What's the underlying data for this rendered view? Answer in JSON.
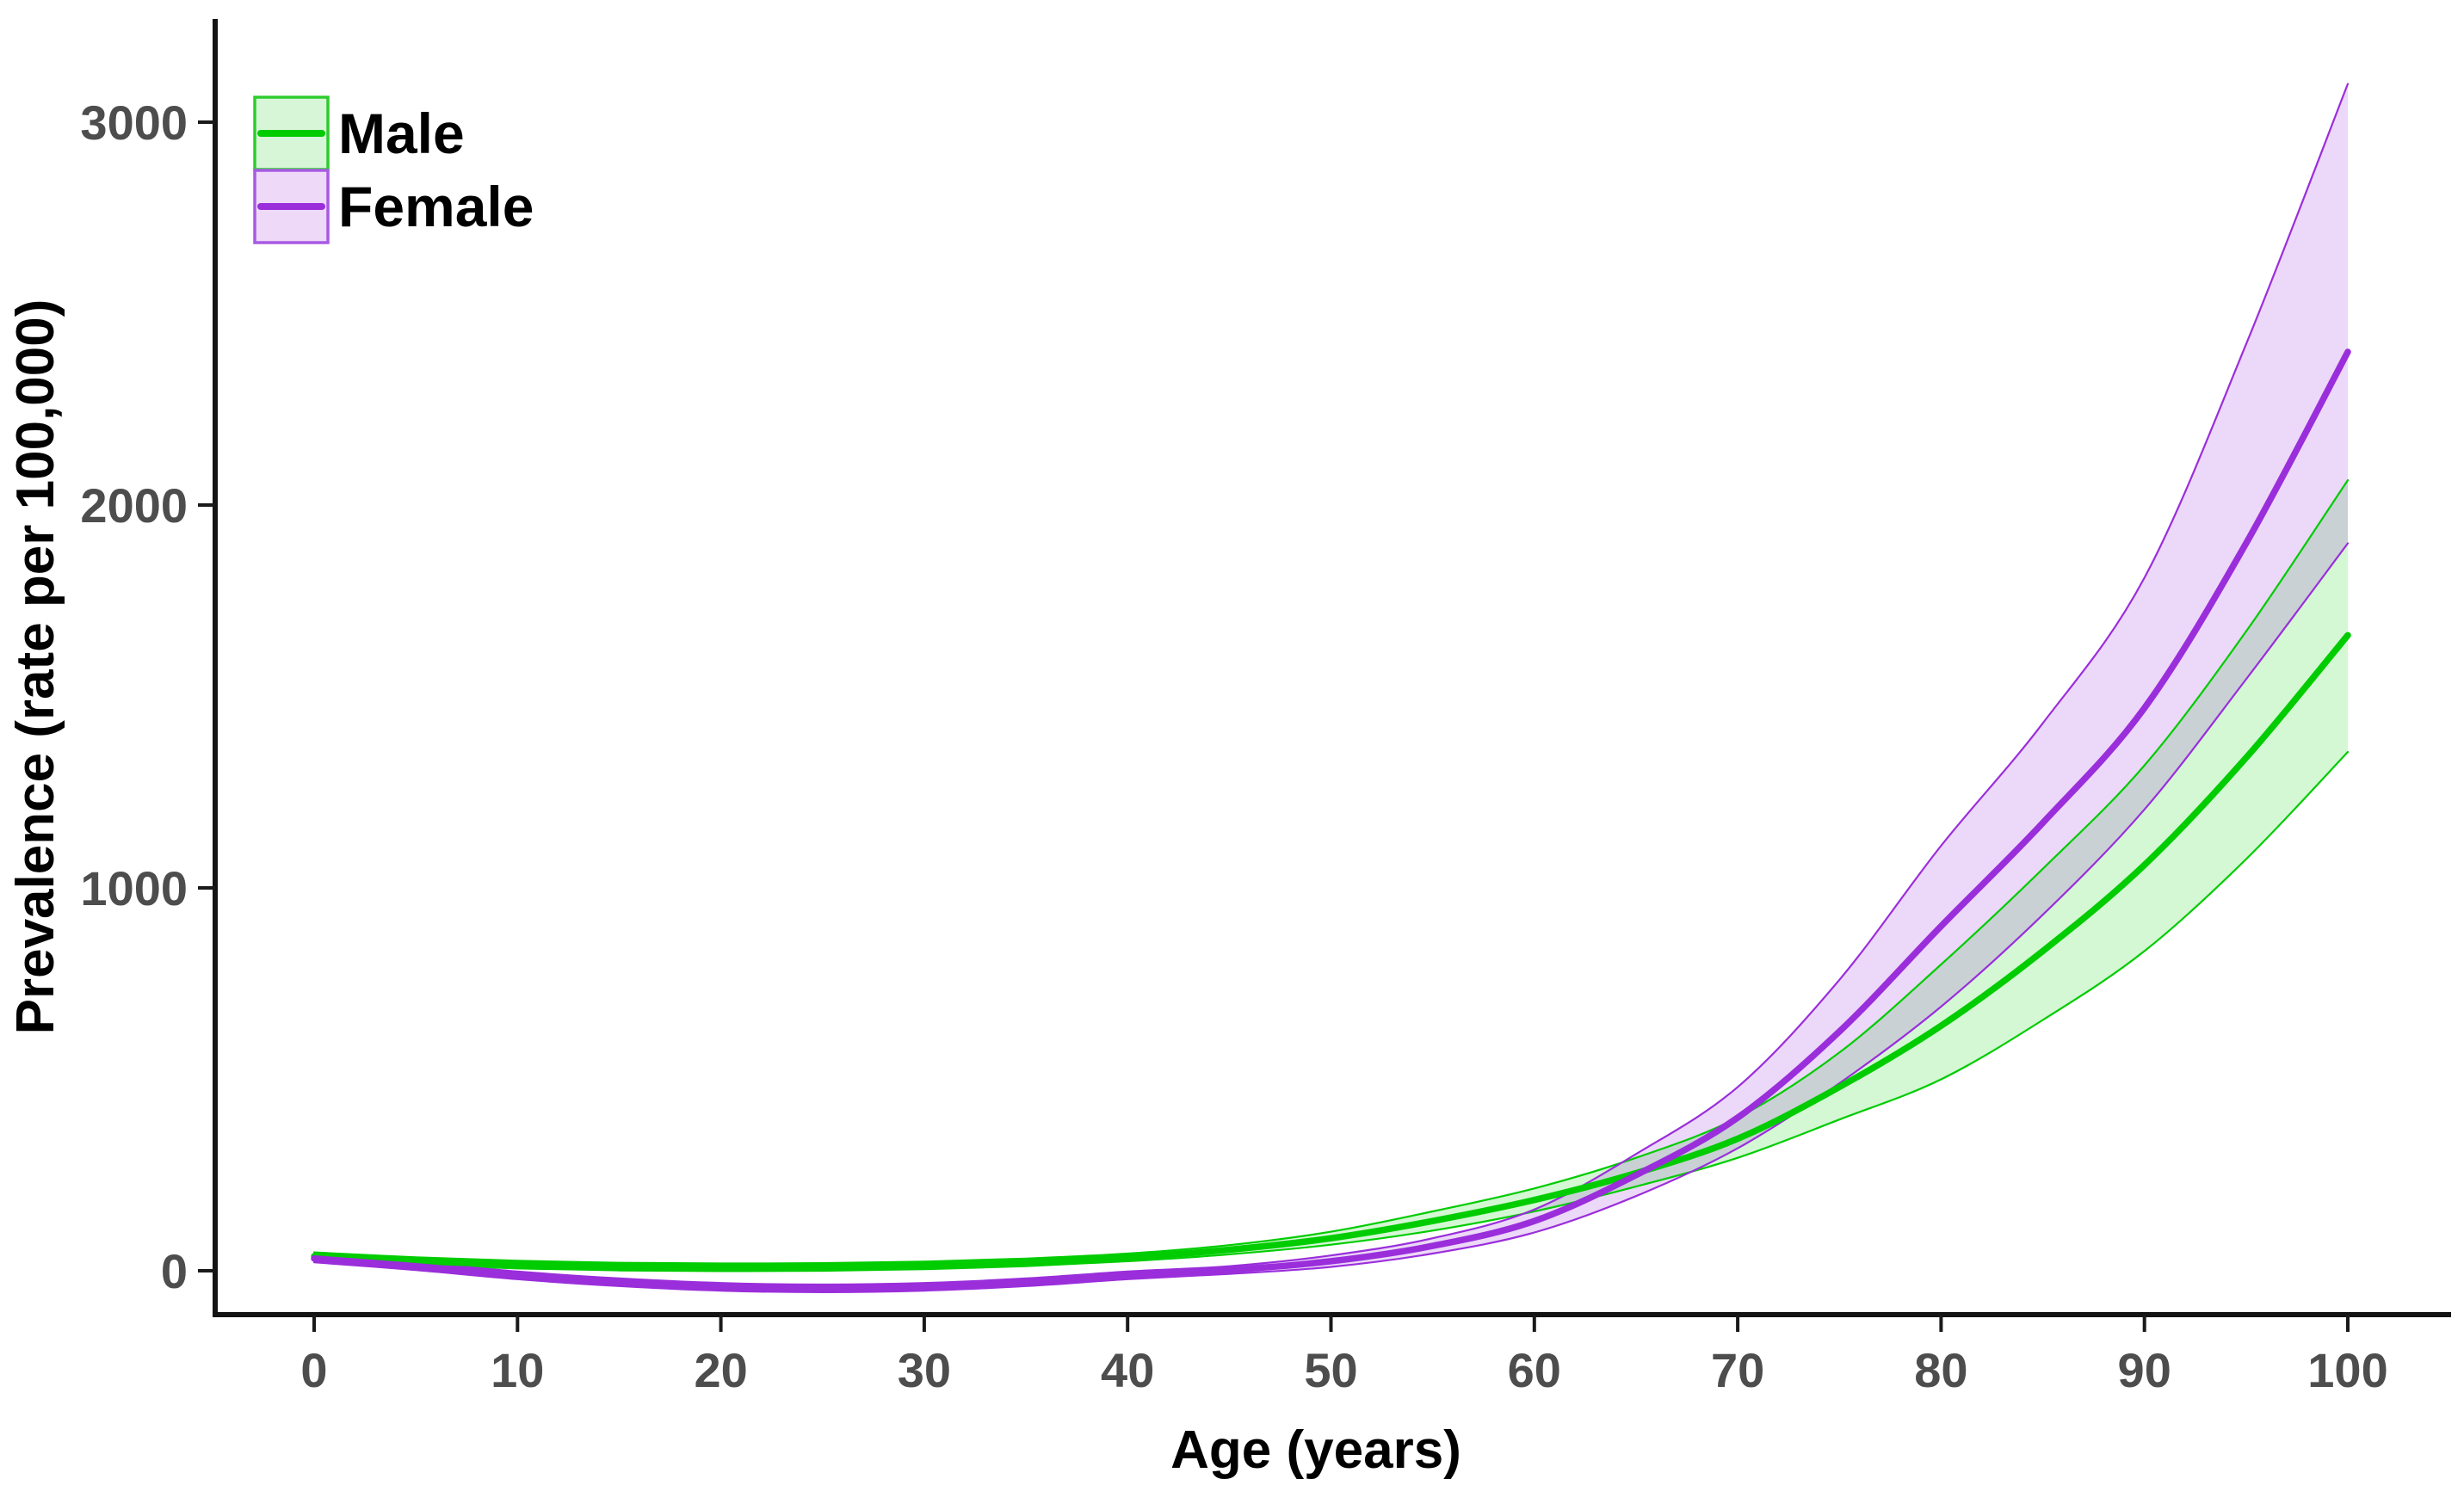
{
  "chart_data": {
    "type": "line",
    "title": "",
    "xlabel": "Age (years)",
    "ylabel": "Prevalence (rate per 100,000)",
    "x_ticks": [
      0,
      10,
      20,
      30,
      40,
      50,
      60,
      70,
      80,
      90,
      100
    ],
    "y_ticks": [
      0,
      1000,
      2000,
      3000
    ],
    "xlim": [
      -5,
      106
    ],
    "ylim": [
      -115,
      3270
    ],
    "grid": false,
    "legend_position": "top-left",
    "ages": [
      0,
      5,
      10,
      15,
      20,
      25,
      30,
      35,
      40,
      45,
      50,
      55,
      60,
      65,
      70,
      75,
      80,
      85,
      90,
      95,
      100
    ],
    "series": [
      {
        "name": "Male",
        "color": "#00cc00",
        "band_fill": "rgba(0,210,0,0.17)",
        "swatch_fill": "#d7f5d7",
        "swatch_border": "#2ecc2e",
        "values": [
          38,
          25,
          16,
          11,
          9,
          10,
          14,
          22,
          35,
          55,
          85,
          130,
          185,
          255,
          345,
          480,
          640,
          835,
          1060,
          1340,
          1660
        ],
        "ci_lower": [
          28,
          15,
          6,
          1,
          -1,
          0,
          4,
          12,
          25,
          43,
          68,
          105,
          155,
          220,
          295,
          395,
          500,
          655,
          835,
          1075,
          1355
        ],
        "ci_upper": [
          48,
          35,
          26,
          21,
          19,
          20,
          24,
          32,
          45,
          67,
          102,
          155,
          215,
          295,
          400,
          570,
          800,
          1050,
          1320,
          1670,
          2065
        ]
      },
      {
        "name": "Female",
        "color": "#9a2edb",
        "band_fill": "rgba(154,46,219,0.19)",
        "swatch_fill": "#eed9f9",
        "swatch_border": "#a85ae3",
        "values": [
          32,
          12,
          -12,
          -30,
          -42,
          -46,
          -42,
          -30,
          -12,
          2,
          25,
          65,
          130,
          250,
          400,
          625,
          900,
          1170,
          1470,
          1900,
          2400
        ],
        "ci_lower": [
          22,
          2,
          -22,
          -40,
          -52,
          -56,
          -52,
          -40,
          -22,
          -8,
          10,
          45,
          100,
          195,
          320,
          490,
          690,
          930,
          1205,
          1545,
          1900
        ],
        "ci_upper": [
          42,
          22,
          -2,
          -20,
          -32,
          -36,
          -32,
          -20,
          -2,
          12,
          40,
          85,
          160,
          305,
          480,
          760,
          1110,
          1430,
          1810,
          2420,
          3100
        ]
      }
    ],
    "style": {
      "background": "#ffffff",
      "axis_color": "#141414",
      "tick_color": "#1a1a1a",
      "tick_label_color": "#4d4d4d",
      "title_color": "#000000",
      "legend_text_color": "#000000"
    }
  }
}
